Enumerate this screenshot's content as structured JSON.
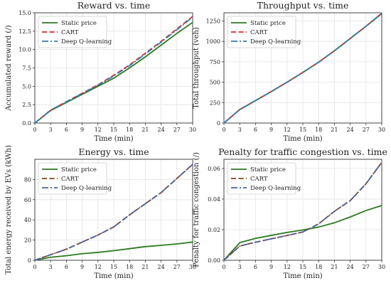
{
  "chart_data": [
    {
      "type": "line",
      "title": "Reward vs. time",
      "xlabel": "Time (min)",
      "ylabel": "Accumulated reward (/)",
      "xlim": [
        0,
        30
      ],
      "ylim": [
        0,
        15
      ],
      "xticks": [
        0,
        3,
        6,
        9,
        12,
        15,
        18,
        21,
        24,
        27,
        30
      ],
      "xtick_labels": [
        "0",
        "3",
        "6",
        "9",
        "12",
        "15",
        "18",
        "21",
        "24",
        "27",
        "30"
      ],
      "yticks": [
        0,
        2.5,
        5,
        7.5,
        10,
        12.5,
        15
      ],
      "ytick_labels": [
        "0.0",
        "2.5",
        "5.0",
        "7.5",
        "10.0",
        "12.5",
        "15.0"
      ],
      "grid": true,
      "legend_position": "upper-left",
      "x": [
        0,
        3,
        6,
        9,
        12,
        15,
        18,
        21,
        24,
        27,
        30
      ],
      "series": [
        {
          "name": "Static price",
          "values": [
            0,
            1.7,
            2.8,
            3.9,
            5.0,
            6.1,
            7.5,
            9.0,
            10.6,
            12.2,
            13.7
          ],
          "color": "#2a7a1e",
          "dash": "solid"
        },
        {
          "name": "CART",
          "values": [
            0,
            1.75,
            2.9,
            4.05,
            5.2,
            6.5,
            7.9,
            9.5,
            11.1,
            12.8,
            14.5
          ],
          "color": "#e8232a",
          "dash": "dashed"
        },
        {
          "name": "Deep Q-learning",
          "values": [
            0,
            1.75,
            2.9,
            4.0,
            5.15,
            6.4,
            7.8,
            9.4,
            11.0,
            12.7,
            14.4
          ],
          "color": "#2a7fb6",
          "dash": "dashdot"
        }
      ]
    },
    {
      "type": "line",
      "title": "Throughput vs. time",
      "xlabel": "Time (min)",
      "ylabel": "Total throughput (veh)",
      "xlim": [
        0,
        30
      ],
      "ylim": [
        0,
        1350
      ],
      "xticks": [
        0,
        3,
        6,
        9,
        12,
        15,
        18,
        21,
        24,
        27,
        30
      ],
      "xtick_labels": [
        "0",
        "3",
        "6",
        "9",
        "12",
        "15",
        "18",
        "21",
        "24",
        "27",
        "30"
      ],
      "yticks": [
        0,
        250,
        500,
        750,
        1000,
        1250
      ],
      "ytick_labels": [
        "0",
        "250",
        "500",
        "750",
        "1000",
        "1250"
      ],
      "grid": true,
      "legend_position": "upper-left",
      "x": [
        0,
        3,
        6,
        9,
        12,
        15,
        18,
        21,
        24,
        27,
        30
      ],
      "series": [
        {
          "name": "Static price",
          "values": [
            0,
            165,
            275,
            385,
            500,
            620,
            745,
            885,
            1035,
            1185,
            1340
          ],
          "color": "#2a7a1e",
          "dash": "solid"
        },
        {
          "name": "CART",
          "values": [
            0,
            165,
            275,
            385,
            500,
            620,
            745,
            885,
            1035,
            1185,
            1345
          ],
          "color": "#e8232a",
          "dash": "dashed"
        },
        {
          "name": "Deep Q-learning",
          "values": [
            0,
            165,
            275,
            385,
            500,
            620,
            745,
            885,
            1035,
            1185,
            1345
          ],
          "color": "#2a7fb6",
          "dash": "dashdot"
        }
      ]
    },
    {
      "type": "line",
      "title": "Energy vs. time",
      "xlabel": "Time (min)",
      "ylabel": "Total energy received by EVs (kWh)",
      "xlim": [
        0,
        30
      ],
      "ylim": [
        0,
        100
      ],
      "xticks": [
        0,
        3,
        6,
        9,
        12,
        15,
        18,
        21,
        24,
        27,
        30
      ],
      "xtick_labels": [
        "0",
        "3",
        "6",
        "9",
        "12",
        "15",
        "18",
        "21",
        "24",
        "27",
        "30"
      ],
      "yticks": [
        0,
        20,
        40,
        60,
        80
      ],
      "ytick_labels": [
        "0",
        "20",
        "40",
        "60",
        "80"
      ],
      "grid": true,
      "legend_position": "upper-left",
      "x": [
        0,
        3,
        6,
        9,
        12,
        15,
        18,
        21,
        24,
        27,
        30
      ],
      "series": [
        {
          "name": "Static price",
          "values": [
            0,
            3,
            4.5,
            6.5,
            7.8,
            9.5,
            11.5,
            13.5,
            14.8,
            16.2,
            18
          ],
          "color": "#2a7a1e",
          "dash": "solid"
        },
        {
          "name": "CART",
          "values": [
            0,
            5.5,
            11,
            18,
            25,
            33,
            45,
            56,
            67,
            81,
            95
          ],
          "color": "#8b4513",
          "dash": "dashed"
        },
        {
          "name": "Deep Q-learning",
          "values": [
            0,
            5.5,
            11,
            18,
            25,
            33,
            45,
            56,
            67,
            81,
            95
          ],
          "color": "#4a5fa8",
          "dash": "dashdot"
        }
      ]
    },
    {
      "type": "line",
      "title": "Penalty for traffic congestion vs. time",
      "xlabel": "Time (min)",
      "ylabel": "Penalty for traffic congestion (/)",
      "xlim": [
        0,
        30
      ],
      "ylim": [
        0,
        0.066
      ],
      "xticks": [
        0,
        3,
        6,
        9,
        12,
        15,
        18,
        21,
        24,
        27,
        30
      ],
      "xtick_labels": [
        "0",
        "3",
        "6",
        "9",
        "12",
        "15",
        "18",
        "21",
        "24",
        "27",
        "30"
      ],
      "yticks": [
        0,
        0.02,
        0.04,
        0.06
      ],
      "ytick_labels": [
        "0.00",
        "0.02",
        "0.04",
        "0.06"
      ],
      "grid": true,
      "legend_position": "upper-left",
      "x": [
        0,
        3,
        6,
        9,
        12,
        15,
        18,
        21,
        24,
        27,
        30
      ],
      "series": [
        {
          "name": "Static price",
          "values": [
            0,
            0.0115,
            0.0143,
            0.0163,
            0.0182,
            0.0198,
            0.0217,
            0.0245,
            0.0283,
            0.0325,
            0.0358
          ],
          "color": "#2a7a1e",
          "dash": "solid"
        },
        {
          "name": "CART",
          "values": [
            0,
            0.0093,
            0.0118,
            0.014,
            0.0162,
            0.0185,
            0.0238,
            0.032,
            0.039,
            0.05,
            0.064
          ],
          "color": "#8b4513",
          "dash": "dashed"
        },
        {
          "name": "Deep Q-learning",
          "values": [
            0,
            0.0093,
            0.0118,
            0.014,
            0.0162,
            0.0185,
            0.0238,
            0.032,
            0.039,
            0.05,
            0.064
          ],
          "color": "#4a5fa8",
          "dash": "dashdot"
        }
      ]
    }
  ]
}
